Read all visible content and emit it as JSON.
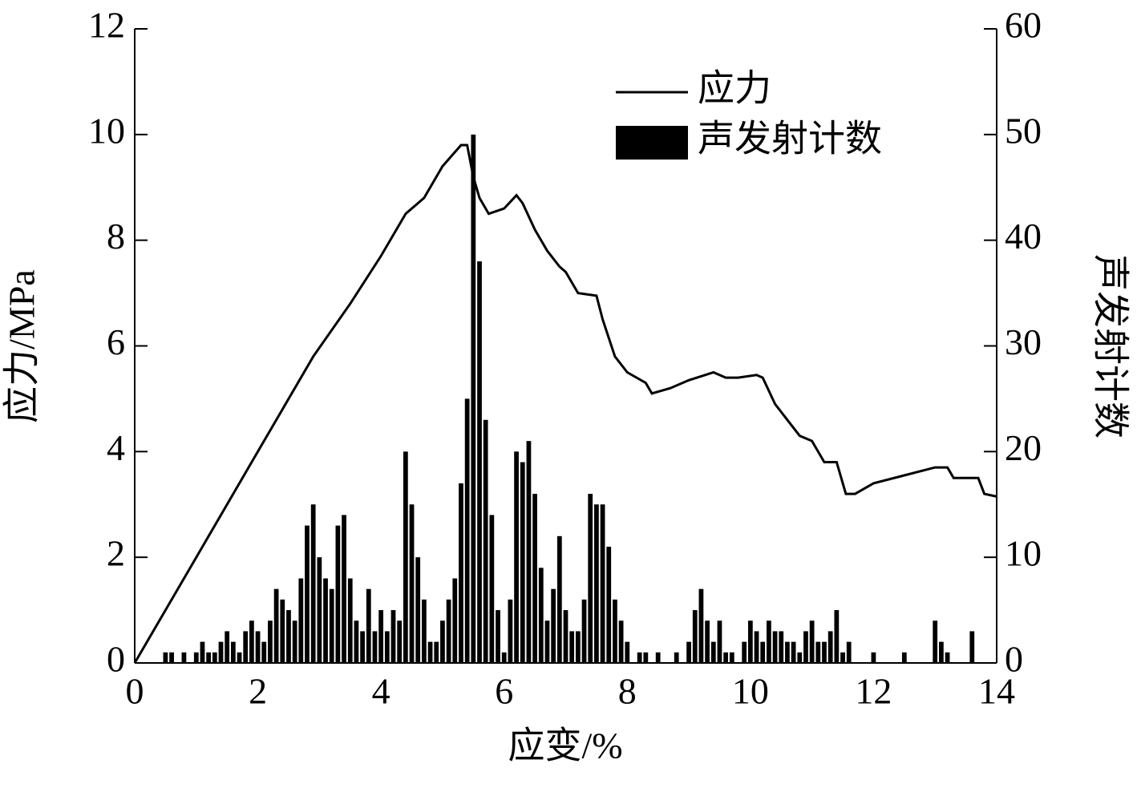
{
  "chart_data": {
    "type": "combo",
    "xlabel": "应变/%",
    "ylabel": "应力/MPa",
    "y2label": "声发射计数",
    "xlim": [
      0,
      14
    ],
    "xticks": [
      0,
      2,
      4,
      6,
      8,
      10,
      12,
      14
    ],
    "ylim": [
      0,
      12
    ],
    "yticks": [
      0,
      2,
      4,
      6,
      8,
      10,
      12
    ],
    "y2lim": [
      0,
      60
    ],
    "y2ticks": [
      0,
      10,
      20,
      30,
      40,
      50,
      60
    ],
    "legend": "upper right",
    "series": [
      {
        "name": "应力",
        "type": "line",
        "color": "#000000",
        "x": [
          0,
          0.5,
          1.0,
          1.5,
          2.0,
          2.4,
          2.9,
          3.5,
          4.0,
          4.4,
          4.7,
          5.0,
          5.3,
          5.4,
          5.5,
          5.6,
          5.75,
          6.0,
          6.2,
          6.3,
          6.5,
          6.7,
          6.9,
          7.0,
          7.2,
          7.5,
          7.6,
          7.8,
          8.0,
          8.3,
          8.4,
          8.7,
          9.0,
          9.4,
          9.6,
          9.8,
          10.1,
          10.2,
          10.4,
          10.6,
          10.8,
          11.0,
          11.2,
          11.4,
          11.55,
          11.7,
          12.0,
          12.5,
          13.0,
          13.2,
          13.3,
          13.7,
          13.8,
          14.0
        ],
        "values": [
          0,
          1.0,
          2.0,
          3.0,
          4.0,
          4.8,
          5.8,
          6.8,
          7.7,
          8.5,
          8.8,
          9.4,
          9.8,
          9.8,
          9.2,
          8.8,
          8.5,
          8.6,
          8.85,
          8.7,
          8.2,
          7.8,
          7.5,
          7.4,
          7.0,
          6.95,
          6.5,
          5.8,
          5.5,
          5.3,
          5.1,
          5.2,
          5.35,
          5.5,
          5.4,
          5.4,
          5.45,
          5.4,
          4.9,
          4.6,
          4.3,
          4.2,
          3.8,
          3.8,
          3.2,
          3.2,
          3.4,
          3.55,
          3.7,
          3.7,
          3.5,
          3.5,
          3.2,
          3.15
        ]
      },
      {
        "name": "声发射计数",
        "type": "bar",
        "color": "#000000",
        "axis": "y2",
        "x": [
          0.5,
          0.6,
          0.8,
          1.0,
          1.1,
          1.2,
          1.3,
          1.4,
          1.5,
          1.6,
          1.7,
          1.8,
          1.9,
          2.0,
          2.1,
          2.2,
          2.3,
          2.4,
          2.5,
          2.6,
          2.7,
          2.8,
          2.9,
          3.0,
          3.1,
          3.2,
          3.3,
          3.4,
          3.5,
          3.6,
          3.7,
          3.8,
          3.9,
          4.0,
          4.1,
          4.2,
          4.3,
          4.4,
          4.5,
          4.6,
          4.7,
          4.8,
          4.9,
          5.0,
          5.1,
          5.2,
          5.3,
          5.4,
          5.5,
          5.6,
          5.7,
          5.8,
          5.9,
          6.0,
          6.1,
          6.2,
          6.3,
          6.4,
          6.5,
          6.6,
          6.7,
          6.8,
          6.9,
          7.0,
          7.1,
          7.2,
          7.3,
          7.4,
          7.5,
          7.6,
          7.7,
          7.8,
          7.9,
          8.0,
          8.2,
          8.3,
          8.5,
          8.8,
          9.0,
          9.1,
          9.2,
          9.3,
          9.4,
          9.5,
          9.6,
          9.7,
          9.9,
          10.0,
          10.1,
          10.2,
          10.3,
          10.4,
          10.5,
          10.6,
          10.7,
          10.8,
          10.9,
          11.0,
          11.1,
          11.2,
          11.3,
          11.4,
          11.5,
          11.6,
          12.0,
          12.5,
          13.0,
          13.1,
          13.2,
          13.6
        ],
        "values": [
          1,
          1,
          1,
          1,
          2,
          1,
          1,
          2,
          3,
          2,
          1,
          3,
          4,
          3,
          2,
          4,
          7,
          6,
          5,
          4,
          8,
          13,
          15,
          10,
          8,
          7,
          13,
          14,
          8,
          4,
          3,
          7,
          3,
          5,
          3,
          5,
          4,
          20,
          15,
          10,
          6,
          2,
          2,
          4,
          6,
          8,
          17,
          25,
          50,
          38,
          23,
          14,
          5,
          1,
          6,
          20,
          19,
          21,
          16,
          9,
          4,
          7,
          12,
          5,
          3,
          3,
          6,
          16,
          15,
          15,
          11,
          6,
          4,
          2,
          1,
          1,
          1,
          1,
          2,
          5,
          7,
          4,
          2,
          4,
          1,
          1,
          2,
          4,
          3,
          2,
          4,
          3,
          3,
          2,
          2,
          1,
          3,
          4,
          2,
          2,
          3,
          5,
          1,
          2,
          1,
          1,
          4,
          2,
          1,
          3
        ]
      }
    ]
  }
}
